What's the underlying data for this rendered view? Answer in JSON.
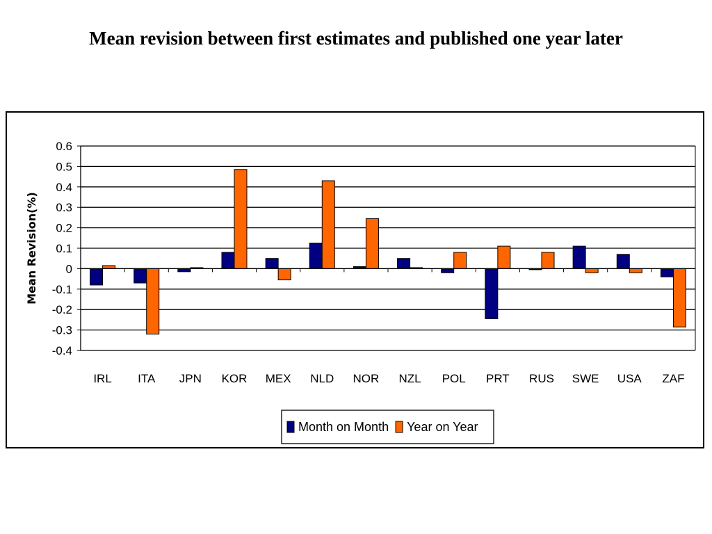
{
  "page": {
    "title": "Mean revision between first estimates and published one year later"
  },
  "chart_data": {
    "type": "bar",
    "title": "",
    "xlabel": "",
    "ylabel": "Mean Revision(%)",
    "ylim": [
      -0.4,
      0.6
    ],
    "yticks": [
      "0.6",
      "0.5",
      "0.4",
      "0.3",
      "0.2",
      "0.1",
      "0",
      "-0.1",
      "-0.2",
      "-0.3",
      "-0.4"
    ],
    "grid": true,
    "legend_position": "bottom",
    "categories": [
      "IRL",
      "ITA",
      "JPN",
      "KOR",
      "MEX",
      "NLD",
      "NOR",
      "NZL",
      "POL",
      "PRT",
      "RUS",
      "SWE",
      "USA",
      "ZAF"
    ],
    "series": [
      {
        "name": "Month on Month",
        "color": "#000080",
        "values": [
          -0.08,
          -0.07,
          -0.015,
          0.08,
          0.05,
          0.125,
          0.01,
          0.05,
          -0.02,
          -0.245,
          -0.005,
          0.11,
          0.07,
          -0.04
        ]
      },
      {
        "name": "Year on Year",
        "color": "#FF6600",
        "values": [
          0.015,
          -0.32,
          0.005,
          0.485,
          -0.055,
          0.43,
          0.245,
          0.005,
          0.08,
          0.11,
          0.08,
          -0.02,
          -0.02,
          -0.285
        ]
      }
    ]
  }
}
